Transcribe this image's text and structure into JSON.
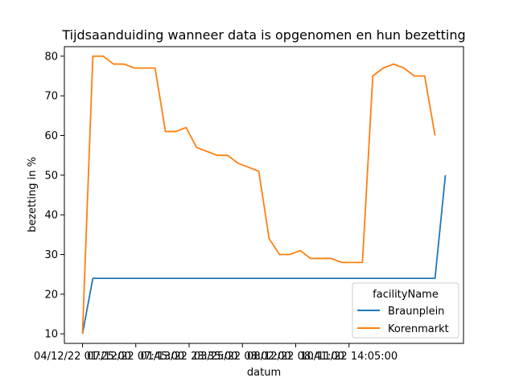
{
  "chart_data": {
    "type": "line",
    "title": "Tijdsaanduiding wanneer data is opgenomen en hun bezetting",
    "xlabel": "datum",
    "ylabel": "bezetting in %",
    "ylim": [
      7.6,
      82.4
    ],
    "yticks": [
      10,
      20,
      30,
      40,
      50,
      60,
      70,
      80
    ],
    "xticks": [
      "04/12/22 01:25:00",
      "07/12/22 07:45:00",
      "01/13/22 23:35:00",
      "03/25/22 08:02:00",
      "08/12/22 08:41:00",
      "10/11/22 14:05:00"
    ],
    "grid": false,
    "legend": {
      "title": "facilityName",
      "placement": "lower-right"
    },
    "series": [
      {
        "name": "Braunplein",
        "color": "#1f77b4",
        "values": [
          10,
          24,
          24,
          24,
          24,
          24,
          24,
          24,
          24,
          24,
          24,
          24,
          24,
          24,
          24,
          24,
          24,
          24,
          24,
          24,
          24,
          24,
          24,
          24,
          24,
          24,
          24,
          24,
          24,
          24,
          24,
          24,
          24,
          24,
          24,
          50
        ]
      },
      {
        "name": "Korenmarkt",
        "color": "#ff7f0e",
        "values": [
          10,
          80,
          80,
          78,
          78,
          77,
          77,
          77,
          61,
          61,
          62,
          57,
          56,
          55,
          55,
          53,
          52,
          51,
          34,
          30,
          30,
          31,
          29,
          29,
          29,
          28,
          28,
          28,
          75,
          77,
          78,
          77,
          75,
          75,
          60
        ]
      }
    ]
  }
}
